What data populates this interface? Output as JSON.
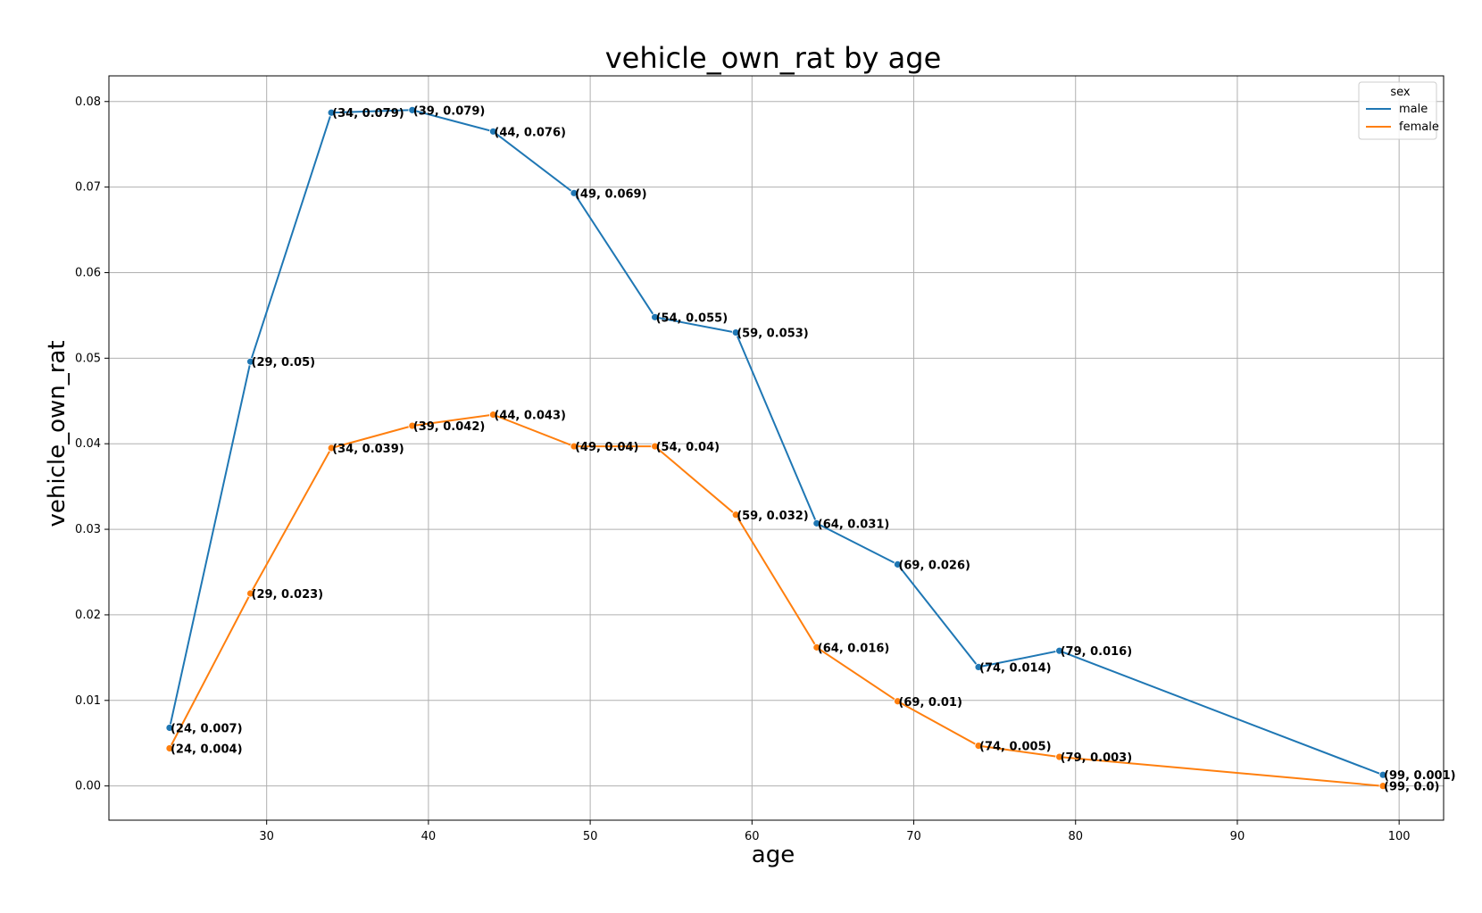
{
  "chart_data": {
    "type": "line",
    "title": "vehicle_own_rat by age",
    "xlabel": "age",
    "ylabel": "vehicle_own_rat",
    "xlim": [
      20.25,
      102.75
    ],
    "ylim": [
      -0.004,
      0.083
    ],
    "xticks": [
      30,
      40,
      50,
      60,
      70,
      80,
      90,
      100
    ],
    "xtick_labels": [
      "30",
      "40",
      "50",
      "60",
      "70",
      "80",
      "90",
      "100"
    ],
    "yticks": [
      0.0,
      0.01,
      0.02,
      0.03,
      0.04,
      0.05,
      0.06,
      0.07,
      0.08
    ],
    "ytick_labels": [
      "0.00",
      "0.01",
      "0.02",
      "0.03",
      "0.04",
      "0.05",
      "0.06",
      "0.07",
      "0.08"
    ],
    "grid": true,
    "legend": {
      "title": "sex",
      "position": "top-right"
    },
    "series": [
      {
        "name": "male",
        "color": "#1f77b4",
        "x": [
          24,
          29,
          34,
          39,
          44,
          49,
          54,
          59,
          64,
          69,
          74,
          79,
          99
        ],
        "y": [
          0.0068,
          0.0496,
          0.0787,
          0.079,
          0.0765,
          0.0693,
          0.0548,
          0.053,
          0.0307,
          0.0259,
          0.0139,
          0.0158,
          0.0013
        ],
        "point_labels": [
          "(24, 0.007)",
          "(29, 0.05)",
          "(34, 0.079)",
          "(39, 0.079)",
          "(44, 0.076)",
          "(49, 0.069)",
          "(54, 0.055)",
          "(59, 0.053)",
          "(64, 0.031)",
          "(69, 0.026)",
          "(74, 0.014)",
          "(79, 0.016)",
          "(99, 0.001)"
        ]
      },
      {
        "name": "female",
        "color": "#ff7f0e",
        "x": [
          24,
          29,
          34,
          39,
          44,
          49,
          54,
          59,
          64,
          69,
          74,
          79,
          99
        ],
        "y": [
          0.0044,
          0.0225,
          0.0395,
          0.0421,
          0.0434,
          0.0397,
          0.0397,
          0.0317,
          0.0162,
          0.0099,
          0.0047,
          0.0034,
          0.0
        ],
        "point_labels": [
          "(24, 0.004)",
          "(29, 0.023)",
          "(34, 0.039)",
          "(39, 0.042)",
          "(44, 0.043)",
          "(49, 0.04)",
          "(54, 0.04)",
          "(59, 0.032)",
          "(64, 0.016)",
          "(69, 0.01)",
          "(74, 0.005)",
          "(79, 0.003)",
          "(99, 0.0)"
        ]
      }
    ]
  }
}
